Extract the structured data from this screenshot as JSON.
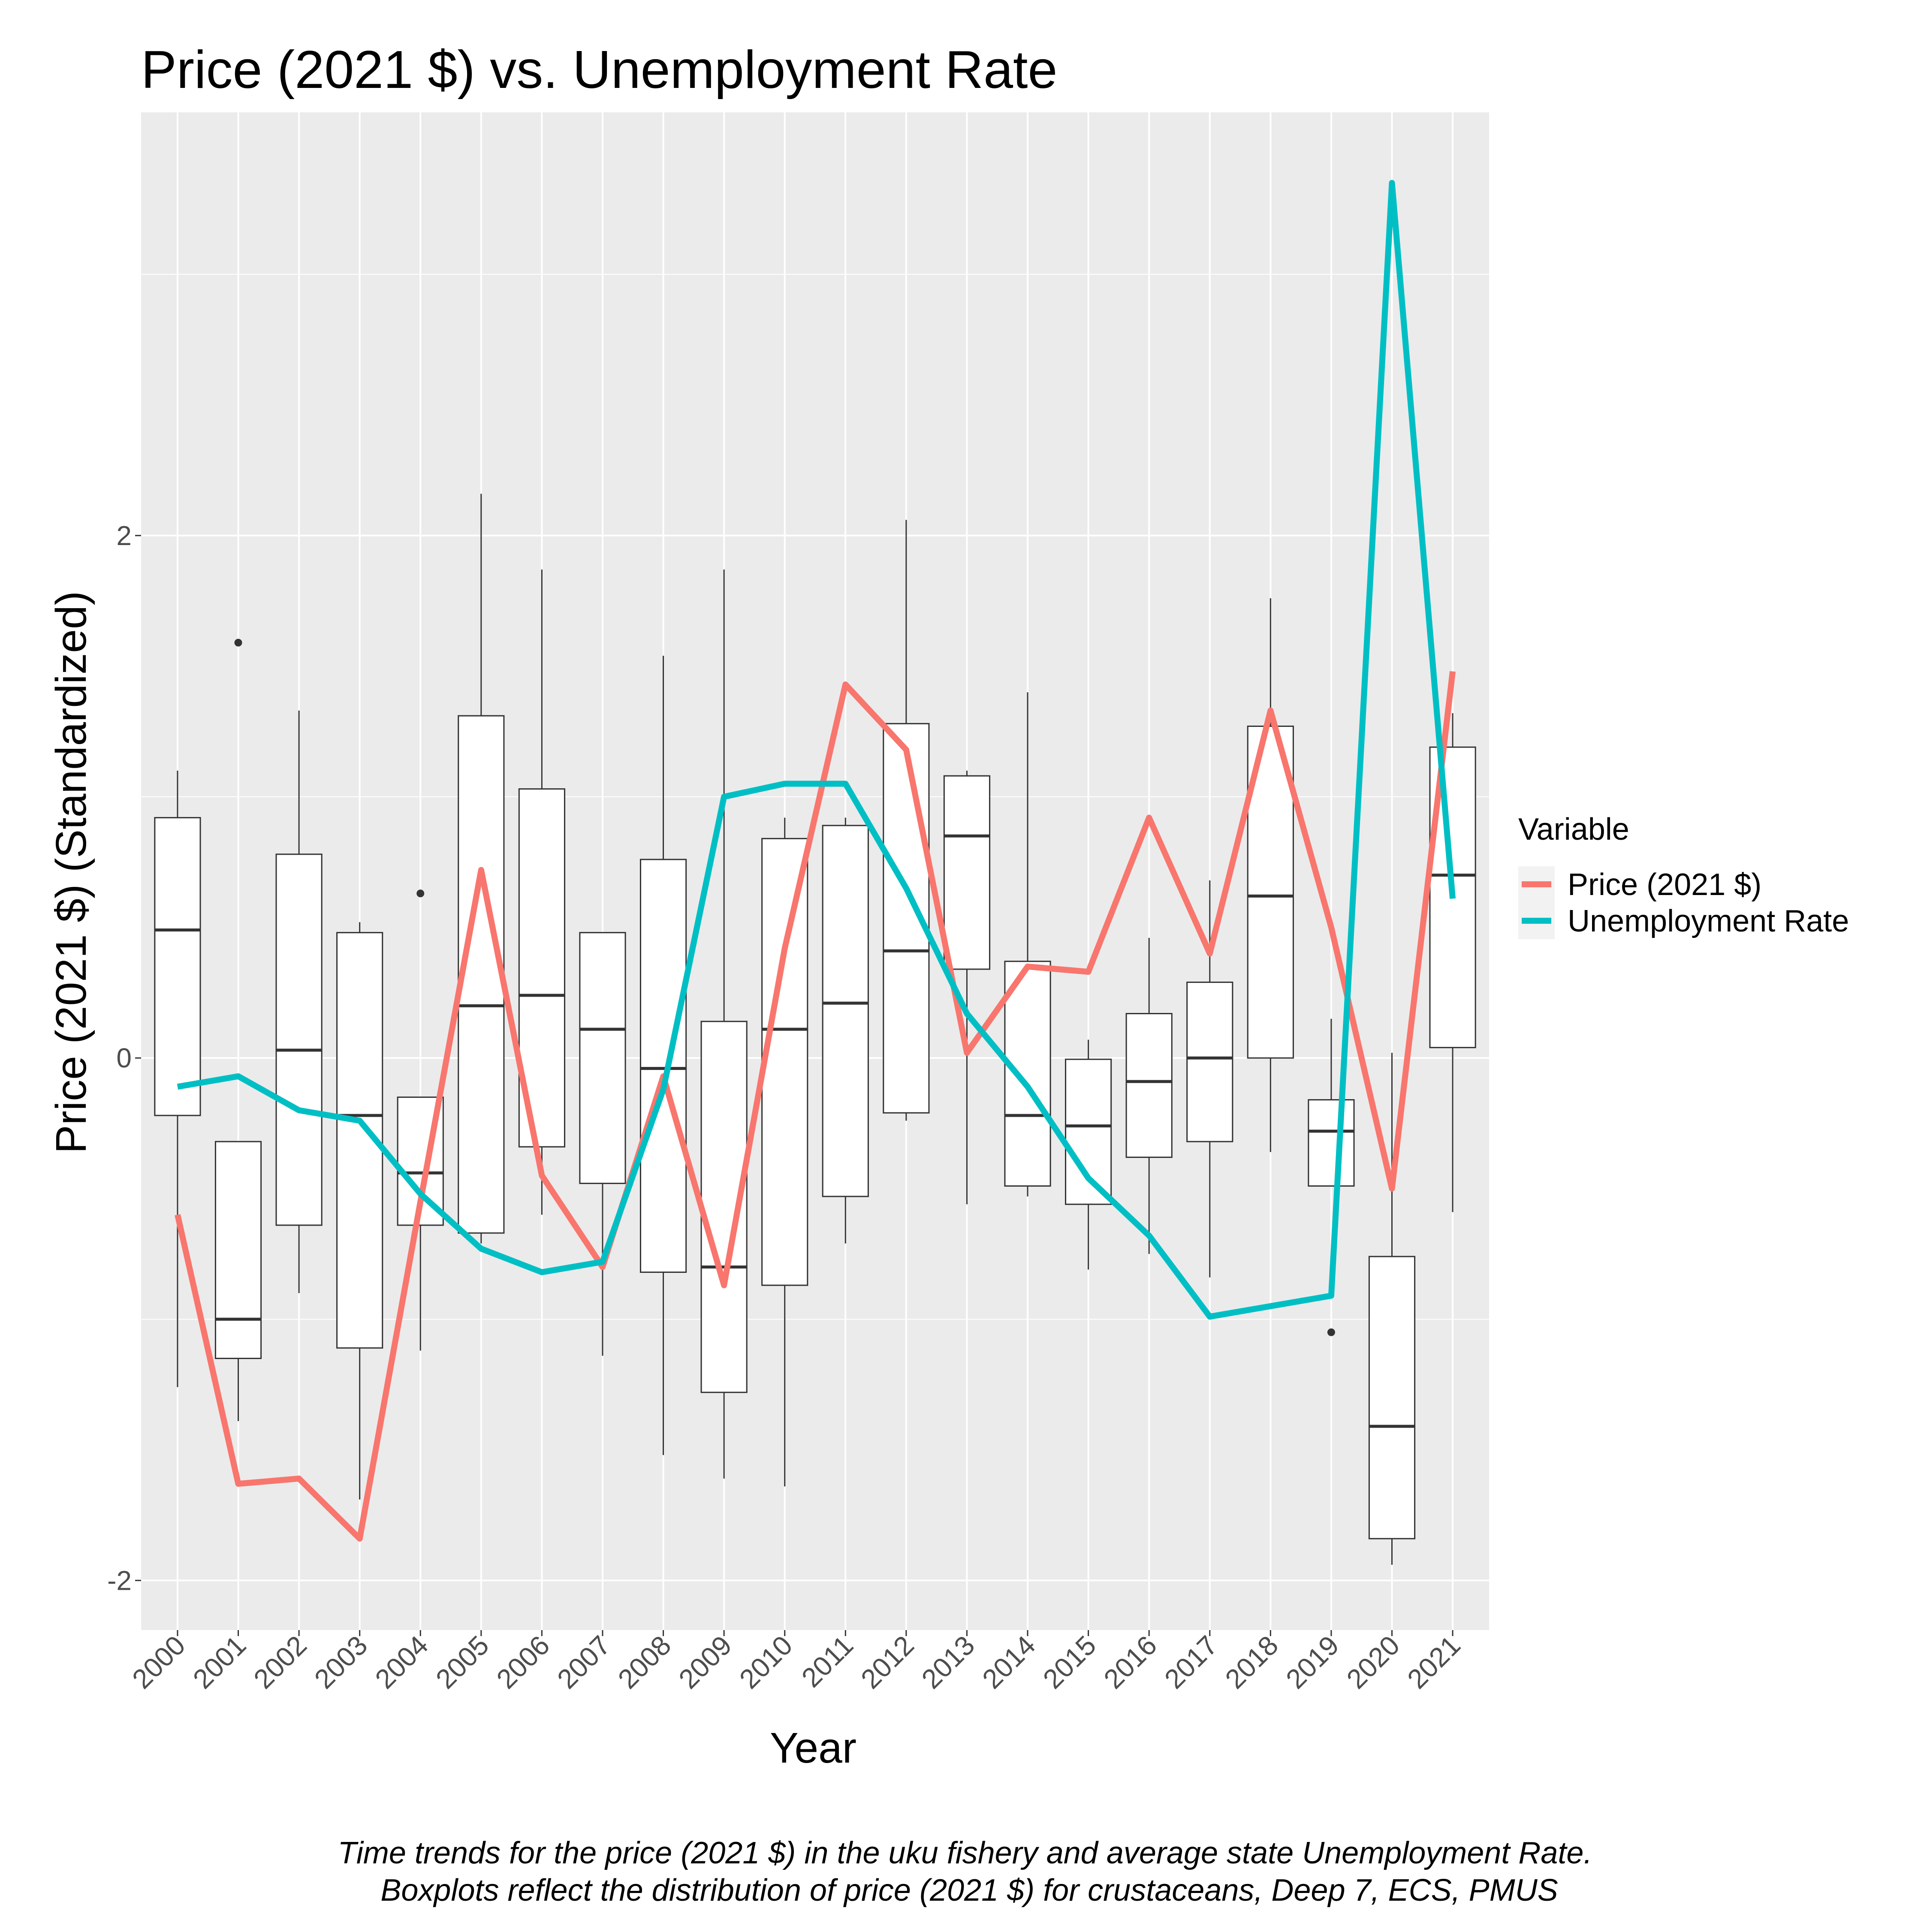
{
  "chart_data": {
    "type": "box_line",
    "title": "Price (2021 $) vs. Unemployment Rate",
    "x_label": "Year",
    "y_label": "Price (2021 $) (Standardized)",
    "legend_title": "Variable",
    "caption": [
      "Time trends for the price (2021 $) in the uku fishery and average state Unemployment Rate.",
      " Boxplots reflect the distribution of price (2021 $) for crustaceans, Deep 7, ECS, PMUS"
    ],
    "categories": [
      "2000",
      "2001",
      "2002",
      "2003",
      "2004",
      "2005",
      "2006",
      "2007",
      "2008",
      "2009",
      "2010",
      "2011",
      "2012",
      "2013",
      "2014",
      "2015",
      "2016",
      "2017",
      "2018",
      "2019",
      "2020",
      "2021"
    ],
    "ylim": [
      -2.19,
      3.62
    ],
    "yticks": [
      -2,
      0,
      2
    ],
    "grid": true,
    "boxes": [
      {
        "whislo": -1.26,
        "q1": -0.22,
        "med": 0.49,
        "q3": 0.92,
        "whishi": 1.1
      },
      {
        "whislo": -1.39,
        "q1": -1.15,
        "med": -1.0,
        "q3": -0.32,
        "whishi": -0.32,
        "fliers": [
          1.59
        ]
      },
      {
        "whislo": -0.9,
        "q1": -0.64,
        "med": 0.03,
        "q3": 0.78,
        "whishi": 1.33
      },
      {
        "whislo": -1.69,
        "q1": -1.11,
        "med": -0.22,
        "q3": 0.48,
        "whishi": 0.52
      },
      {
        "whislo": -1.12,
        "q1": -0.64,
        "med": -0.44,
        "q3": -0.15,
        "whishi": -0.15,
        "fliers": [
          0.63
        ]
      },
      {
        "whislo": -0.71,
        "q1": -0.67,
        "med": 0.2,
        "q3": 1.31,
        "whishi": 2.16
      },
      {
        "whislo": -0.6,
        "q1": -0.34,
        "med": 0.24,
        "q3": 1.03,
        "whishi": 1.87
      },
      {
        "whislo": -1.14,
        "q1": -0.48,
        "med": 0.11,
        "q3": 0.48,
        "whishi": 0.48
      },
      {
        "whislo": -1.52,
        "q1": -0.82,
        "med": -0.04,
        "q3": 0.76,
        "whishi": 1.54
      },
      {
        "whislo": -1.61,
        "q1": -1.28,
        "med": -0.8,
        "q3": 0.14,
        "whishi": 1.87
      },
      {
        "whislo": -1.64,
        "q1": -0.87,
        "med": 0.11,
        "q3": 0.84,
        "whishi": 0.92
      },
      {
        "whislo": -0.71,
        "q1": -0.53,
        "med": 0.21,
        "q3": 0.89,
        "whishi": 0.92
      },
      {
        "whislo": -0.24,
        "q1": -0.21,
        "med": 0.41,
        "q3": 1.28,
        "whishi": 2.06
      },
      {
        "whislo": -0.56,
        "q1": 0.34,
        "med": 0.85,
        "q3": 1.08,
        "whishi": 1.1
      },
      {
        "whislo": -0.53,
        "q1": -0.49,
        "med": -0.22,
        "q3": 0.37,
        "whishi": 1.4
      },
      {
        "whislo": -0.81,
        "q1": -0.56,
        "med": -0.26,
        "q3": -0.005,
        "whishi": 0.07
      },
      {
        "whislo": -0.75,
        "q1": -0.38,
        "med": -0.09,
        "q3": 0.17,
        "whishi": 0.46
      },
      {
        "whislo": -0.84,
        "q1": -0.32,
        "med": 0.0,
        "q3": 0.29,
        "whishi": 0.68
      },
      {
        "whislo": -0.36,
        "q1": 0.0,
        "med": 0.62,
        "q3": 1.27,
        "whishi": 1.76
      },
      {
        "whislo": -0.49,
        "q1": -0.49,
        "med": -0.28,
        "q3": -0.16,
        "whishi": 0.15,
        "fliers": [
          -1.05
        ]
      },
      {
        "whislo": -1.94,
        "q1": -1.84,
        "med": -1.41,
        "q3": -0.76,
        "whishi": 0.02
      },
      {
        "whislo": -0.59,
        "q1": 0.04,
        "med": 0.7,
        "q3": 1.19,
        "whishi": 1.32
      }
    ],
    "series": [
      {
        "name": "Price (2021 $)",
        "color": "#f8766d",
        "values": [
          -0.6,
          -1.63,
          -1.61,
          -1.84,
          -0.55,
          0.72,
          -0.45,
          -0.8,
          -0.07,
          -0.87,
          0.42,
          1.43,
          1.18,
          0.02,
          0.35,
          0.33,
          0.92,
          0.4,
          1.33,
          0.5,
          -0.5,
          1.48
        ]
      },
      {
        "name": "Unemployment Rate",
        "color": "#00bfc4",
        "values": [
          -0.11,
          -0.07,
          -0.2,
          -0.24,
          -0.52,
          -0.73,
          -0.82,
          -0.78,
          -0.12,
          1.0,
          1.05,
          1.05,
          0.65,
          0.17,
          -0.11,
          -0.46,
          -0.68,
          -0.99,
          -0.95,
          -0.91,
          3.35,
          0.61
        ]
      }
    ]
  }
}
